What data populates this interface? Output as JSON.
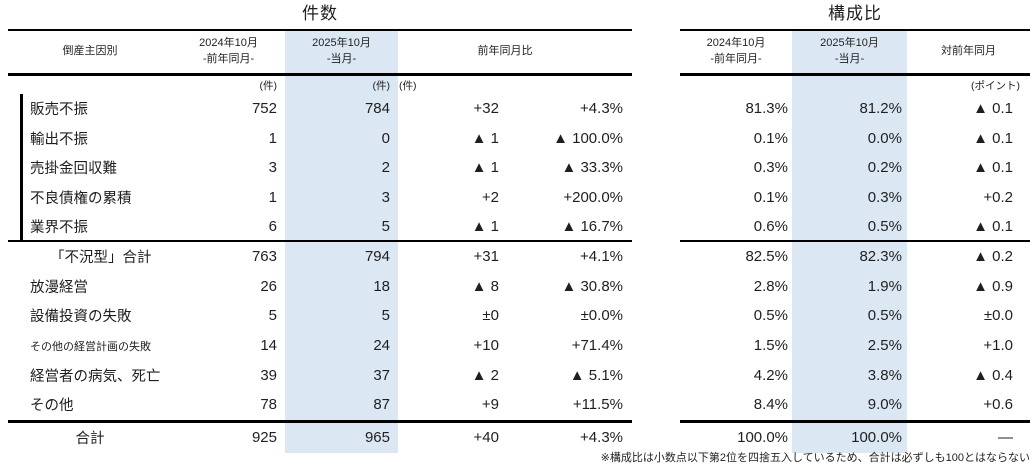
{
  "count_table": {
    "title": "件数",
    "header": {
      "category": "倒産主因別",
      "col_2024_line1": "2024年10月",
      "col_2024_line2": "-前年同月-",
      "col_2025_line1": "2025年10月",
      "col_2025_line2": "-当月-",
      "col_yoy": "前年同月比"
    },
    "units": {
      "col_2024": "(件)",
      "col_2025": "(件)",
      "col_diff": "(件)"
    }
  },
  "share_table": {
    "title": "構成比",
    "header": {
      "col_2024_line1": "2024年10月",
      "col_2024_line2": "-前年同月-",
      "col_2025_line1": "2025年10月",
      "col_2025_line2": "-当月-",
      "col_yoy": "対前年同月"
    },
    "units": {
      "col_diff": "(ポイント)"
    }
  },
  "rows": [
    {
      "label": "販売不振",
      "count_2024": "752",
      "count_2025": "784",
      "diff": "+32",
      "pct": "+4.3%",
      "share_2024": "81.3%",
      "share_2025": "81.2%",
      "share_diff": "▲ 0.1",
      "group_end": false,
      "style": ""
    },
    {
      "label": "輸出不振",
      "count_2024": "1",
      "count_2025": "0",
      "diff": "▲ 1",
      "pct": "▲ 100.0%",
      "share_2024": "0.1%",
      "share_2025": "0.0%",
      "share_diff": "▲ 0.1",
      "group_end": false,
      "style": ""
    },
    {
      "label": "売掛金回収難",
      "count_2024": "3",
      "count_2025": "2",
      "diff": "▲ 1",
      "pct": "▲ 33.3%",
      "share_2024": "0.3%",
      "share_2025": "0.2%",
      "share_diff": "▲ 0.1",
      "group_end": false,
      "style": ""
    },
    {
      "label": "不良債権の累積",
      "count_2024": "1",
      "count_2025": "3",
      "diff": "+2",
      "pct": "+200.0%",
      "share_2024": "0.1%",
      "share_2025": "0.3%",
      "share_diff": "+0.2",
      "group_end": false,
      "style": ""
    },
    {
      "label": "業界不振",
      "count_2024": "6",
      "count_2025": "5",
      "diff": "▲ 1",
      "pct": "▲ 16.7%",
      "share_2024": "0.6%",
      "share_2025": "0.5%",
      "share_diff": "▲ 0.1",
      "group_end": true,
      "style": ""
    },
    {
      "label": "「不況型」合計",
      "count_2024": "763",
      "count_2025": "794",
      "diff": "+31",
      "pct": "+4.1%",
      "share_2024": "82.5%",
      "share_2025": "82.3%",
      "share_diff": "▲ 0.2",
      "group_end": false,
      "style": "subtotal"
    },
    {
      "label": "放漫経営",
      "count_2024": "26",
      "count_2025": "18",
      "diff": "▲ 8",
      "pct": "▲ 30.8%",
      "share_2024": "2.8%",
      "share_2025": "1.9%",
      "share_diff": "▲ 0.9",
      "group_end": false,
      "style": ""
    },
    {
      "label": "設備投資の失敗",
      "count_2024": "5",
      "count_2025": "5",
      "diff": "±0",
      "pct": "±0.0%",
      "share_2024": "0.5%",
      "share_2025": "0.5%",
      "share_diff": "±0.0",
      "group_end": false,
      "style": ""
    },
    {
      "label": "その他の経営計画の失敗",
      "count_2024": "14",
      "count_2025": "24",
      "diff": "+10",
      "pct": "+71.4%",
      "share_2024": "1.5%",
      "share_2025": "2.5%",
      "share_diff": "+1.0",
      "group_end": false,
      "style": "",
      "label_small": true
    },
    {
      "label": "経営者の病気、死亡",
      "count_2024": "39",
      "count_2025": "37",
      "diff": "▲ 2",
      "pct": "▲ 5.1%",
      "share_2024": "4.2%",
      "share_2025": "3.8%",
      "share_diff": "▲ 0.4",
      "group_end": false,
      "style": ""
    },
    {
      "label": "その他",
      "count_2024": "78",
      "count_2025": "87",
      "diff": "+9",
      "pct": "+11.5%",
      "share_2024": "8.4%",
      "share_2025": "9.0%",
      "share_diff": "+0.6",
      "group_end": false,
      "style": ""
    },
    {
      "label": "合計",
      "count_2024": "925",
      "count_2025": "965",
      "diff": "+40",
      "pct": "+4.3%",
      "share_2024": "100.0%",
      "share_2025": "100.0%",
      "share_diff": "—",
      "group_end": false,
      "style": "total"
    }
  ],
  "footnote": "※構成比は小数点以下第2位を四捨五入しているため、合計は必ずしも100とはならない",
  "colors": {
    "highlight": "#dbe8f4",
    "line": "#000000",
    "text": "#1f1f1f"
  }
}
